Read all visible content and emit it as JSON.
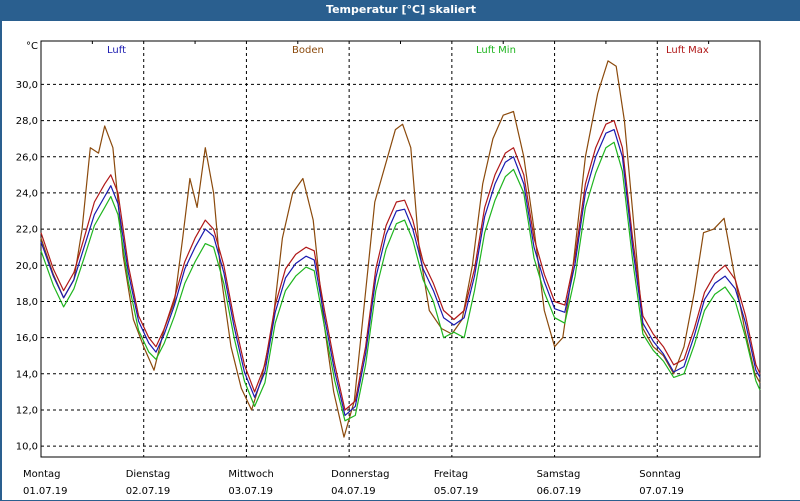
{
  "window": {
    "title": "Temperatur [°C] skaliert"
  },
  "legend": [
    {
      "label": "Luft",
      "color": "#1a1ab0"
    },
    {
      "label": "Boden",
      "color": "#8b4a0c"
    },
    {
      "label": "Luft Min",
      "color": "#1fb51f"
    },
    {
      "label": "Luft Max",
      "color": "#b01818"
    }
  ],
  "chart_data": {
    "type": "line",
    "title": "Temperatur [°C] skaliert",
    "ylabel": "°C",
    "ylim": [
      9.4,
      32.4
    ],
    "yticks": [
      "10,0",
      "12,0",
      "14,0",
      "16,0",
      "18,0",
      "20,0",
      "22,0",
      "24,0",
      "26,0",
      "28,0",
      "30,0"
    ],
    "xlim": [
      0,
      7
    ],
    "xticks": [
      {
        "weekday": "Montag",
        "date": "01.07.19"
      },
      {
        "weekday": "Dienstag",
        "date": "02.07.19"
      },
      {
        "weekday": "Mittwoch",
        "date": "03.07.19"
      },
      {
        "weekday": "Donnerstag",
        "date": "04.07.19"
      },
      {
        "weekday": "Freitag",
        "date": "05.07.19"
      },
      {
        "weekday": "Samstag",
        "date": "06.07.19"
      },
      {
        "weekday": "Sonntag",
        "date": "07.07.19"
      }
    ],
    "grid": true,
    "legend_position": "top",
    "series": [
      {
        "name": "Boden",
        "color": "#8b4a0c",
        "points": [
          [
            0,
            21.5
          ],
          [
            0.12,
            19.5
          ],
          [
            0.22,
            18.2
          ],
          [
            0.32,
            19.2
          ],
          [
            0.4,
            22.0
          ],
          [
            0.48,
            26.5
          ],
          [
            0.56,
            26.2
          ],
          [
            0.62,
            27.7
          ],
          [
            0.7,
            26.5
          ],
          [
            0.8,
            20.5
          ],
          [
            0.9,
            17.0
          ],
          [
            1.0,
            15.5
          ],
          [
            1.1,
            14.2
          ],
          [
            1.2,
            16.5
          ],
          [
            1.3,
            18.0
          ],
          [
            1.38,
            21.5
          ],
          [
            1.45,
            24.8
          ],
          [
            1.52,
            23.2
          ],
          [
            1.6,
            26.5
          ],
          [
            1.68,
            24.0
          ],
          [
            1.75,
            19.5
          ],
          [
            1.85,
            15.5
          ],
          [
            1.95,
            13.2
          ],
          [
            2.05,
            12.0
          ],
          [
            2.15,
            13.8
          ],
          [
            2.25,
            16.5
          ],
          [
            2.35,
            21.5
          ],
          [
            2.45,
            24.0
          ],
          [
            2.55,
            24.8
          ],
          [
            2.65,
            22.5
          ],
          [
            2.75,
            17.0
          ],
          [
            2.85,
            13.0
          ],
          [
            2.95,
            10.5
          ],
          [
            3.05,
            12.5
          ],
          [
            3.15,
            18.0
          ],
          [
            3.25,
            23.5
          ],
          [
            3.35,
            25.5
          ],
          [
            3.45,
            27.5
          ],
          [
            3.52,
            27.8
          ],
          [
            3.6,
            26.5
          ],
          [
            3.68,
            21.0
          ],
          [
            3.78,
            17.5
          ],
          [
            3.9,
            16.5
          ],
          [
            4.0,
            16.2
          ],
          [
            4.1,
            17.0
          ],
          [
            4.2,
            20.0
          ],
          [
            4.3,
            24.5
          ],
          [
            4.4,
            27.0
          ],
          [
            4.5,
            28.3
          ],
          [
            4.6,
            28.5
          ],
          [
            4.7,
            26.0
          ],
          [
            4.8,
            22.0
          ],
          [
            4.9,
            17.5
          ],
          [
            5.0,
            15.5
          ],
          [
            5.08,
            16.0
          ],
          [
            5.18,
            20.0
          ],
          [
            5.3,
            26.0
          ],
          [
            5.42,
            29.5
          ],
          [
            5.52,
            31.3
          ],
          [
            5.6,
            31.0
          ],
          [
            5.68,
            28.0
          ],
          [
            5.76,
            23.0
          ],
          [
            5.86,
            16.5
          ],
          [
            5.96,
            15.5
          ],
          [
            6.06,
            15.0
          ],
          [
            6.16,
            14.0
          ],
          [
            6.26,
            15.5
          ],
          [
            6.36,
            18.5
          ],
          [
            6.45,
            21.8
          ],
          [
            6.55,
            22.0
          ],
          [
            6.65,
            22.6
          ],
          [
            6.75,
            19.5
          ],
          [
            6.85,
            16.5
          ],
          [
            6.95,
            14.0
          ],
          [
            7.0,
            13.5
          ]
        ]
      },
      {
        "name": "Luft Max",
        "color": "#b01818",
        "points": [
          [
            0,
            21.8
          ],
          [
            0.12,
            19.8
          ],
          [
            0.22,
            18.6
          ],
          [
            0.32,
            19.6
          ],
          [
            0.42,
            21.5
          ],
          [
            0.52,
            23.5
          ],
          [
            0.62,
            24.5
          ],
          [
            0.68,
            25.0
          ],
          [
            0.75,
            24.0
          ],
          [
            0.85,
            20.0
          ],
          [
            0.95,
            17.2
          ],
          [
            1.05,
            16.0
          ],
          [
            1.12,
            15.5
          ],
          [
            1.2,
            16.5
          ],
          [
            1.3,
            18.2
          ],
          [
            1.4,
            20.2
          ],
          [
            1.5,
            21.5
          ],
          [
            1.6,
            22.5
          ],
          [
            1.68,
            22.0
          ],
          [
            1.78,
            20.0
          ],
          [
            1.88,
            17.0
          ],
          [
            1.98,
            14.5
          ],
          [
            2.08,
            13.0
          ],
          [
            2.18,
            14.5
          ],
          [
            2.28,
            17.8
          ],
          [
            2.38,
            19.8
          ],
          [
            2.48,
            20.6
          ],
          [
            2.58,
            21.0
          ],
          [
            2.66,
            20.8
          ],
          [
            2.76,
            17.5
          ],
          [
            2.86,
            14.5
          ],
          [
            2.96,
            12.0
          ],
          [
            3.06,
            12.5
          ],
          [
            3.16,
            15.5
          ],
          [
            3.26,
            19.8
          ],
          [
            3.36,
            22.2
          ],
          [
            3.46,
            23.5
          ],
          [
            3.54,
            23.6
          ],
          [
            3.62,
            22.5
          ],
          [
            3.72,
            20.2
          ],
          [
            3.82,
            19.0
          ],
          [
            3.92,
            17.5
          ],
          [
            4.02,
            17.0
          ],
          [
            4.12,
            17.5
          ],
          [
            4.22,
            19.8
          ],
          [
            4.32,
            23.2
          ],
          [
            4.42,
            25.0
          ],
          [
            4.52,
            26.2
          ],
          [
            4.6,
            26.5
          ],
          [
            4.7,
            25.0
          ],
          [
            4.8,
            21.5
          ],
          [
            4.9,
            19.5
          ],
          [
            5.0,
            18.0
          ],
          [
            5.1,
            17.8
          ],
          [
            5.2,
            20.5
          ],
          [
            5.3,
            24.5
          ],
          [
            5.4,
            26.5
          ],
          [
            5.5,
            27.8
          ],
          [
            5.58,
            28.0
          ],
          [
            5.66,
            26.5
          ],
          [
            5.76,
            21.5
          ],
          [
            5.86,
            17.2
          ],
          [
            5.96,
            16.2
          ],
          [
            6.06,
            15.5
          ],
          [
            6.16,
            14.5
          ],
          [
            6.26,
            14.8
          ],
          [
            6.36,
            16.5
          ],
          [
            6.46,
            18.5
          ],
          [
            6.56,
            19.5
          ],
          [
            6.66,
            20.0
          ],
          [
            6.76,
            19.2
          ],
          [
            6.86,
            17.2
          ],
          [
            6.96,
            14.5
          ],
          [
            7.0,
            14.0
          ]
        ]
      },
      {
        "name": "Luft",
        "color": "#1a1ab0",
        "points": [
          [
            0,
            21.3
          ],
          [
            0.12,
            19.4
          ],
          [
            0.22,
            18.2
          ],
          [
            0.32,
            19.2
          ],
          [
            0.42,
            21.0
          ],
          [
            0.52,
            22.8
          ],
          [
            0.62,
            23.8
          ],
          [
            0.68,
            24.4
          ],
          [
            0.75,
            23.4
          ],
          [
            0.85,
            19.6
          ],
          [
            0.95,
            16.9
          ],
          [
            1.05,
            15.7
          ],
          [
            1.12,
            15.2
          ],
          [
            1.2,
            16.2
          ],
          [
            1.3,
            17.8
          ],
          [
            1.4,
            19.8
          ],
          [
            1.5,
            21.0
          ],
          [
            1.6,
            22.0
          ],
          [
            1.68,
            21.6
          ],
          [
            1.78,
            19.6
          ],
          [
            1.88,
            16.6
          ],
          [
            1.98,
            14.1
          ],
          [
            2.08,
            12.7
          ],
          [
            2.18,
            14.1
          ],
          [
            2.28,
            17.4
          ],
          [
            2.38,
            19.3
          ],
          [
            2.48,
            20.1
          ],
          [
            2.58,
            20.5
          ],
          [
            2.66,
            20.3
          ],
          [
            2.76,
            17.1
          ],
          [
            2.86,
            14.1
          ],
          [
            2.96,
            11.7
          ],
          [
            3.06,
            12.2
          ],
          [
            3.16,
            15.1
          ],
          [
            3.26,
            19.3
          ],
          [
            3.36,
            21.7
          ],
          [
            3.46,
            23.0
          ],
          [
            3.54,
            23.1
          ],
          [
            3.62,
            22.0
          ],
          [
            3.72,
            19.8
          ],
          [
            3.82,
            18.6
          ],
          [
            3.92,
            17.1
          ],
          [
            4.02,
            16.7
          ],
          [
            4.12,
            17.1
          ],
          [
            4.22,
            19.4
          ],
          [
            4.32,
            22.7
          ],
          [
            4.42,
            24.5
          ],
          [
            4.52,
            25.7
          ],
          [
            4.6,
            26.0
          ],
          [
            4.7,
            24.5
          ],
          [
            4.8,
            21.0
          ],
          [
            4.9,
            19.1
          ],
          [
            5.0,
            17.6
          ],
          [
            5.1,
            17.4
          ],
          [
            5.2,
            20.1
          ],
          [
            5.3,
            24.0
          ],
          [
            5.4,
            26.0
          ],
          [
            5.5,
            27.3
          ],
          [
            5.58,
            27.5
          ],
          [
            5.66,
            26.0
          ],
          [
            5.76,
            21.0
          ],
          [
            5.86,
            16.8
          ],
          [
            5.96,
            15.8
          ],
          [
            6.06,
            15.1
          ],
          [
            6.16,
            14.1
          ],
          [
            6.26,
            14.4
          ],
          [
            6.36,
            16.1
          ],
          [
            6.46,
            18.1
          ],
          [
            6.56,
            19.0
          ],
          [
            6.66,
            19.4
          ],
          [
            6.76,
            18.7
          ],
          [
            6.86,
            16.8
          ],
          [
            6.96,
            14.2
          ],
          [
            7.0,
            13.8
          ]
        ]
      },
      {
        "name": "Luft Min",
        "color": "#1fb51f",
        "points": [
          [
            0,
            20.8
          ],
          [
            0.12,
            18.9
          ],
          [
            0.22,
            17.7
          ],
          [
            0.32,
            18.7
          ],
          [
            0.42,
            20.4
          ],
          [
            0.52,
            22.2
          ],
          [
            0.62,
            23.2
          ],
          [
            0.68,
            23.8
          ],
          [
            0.75,
            22.8
          ],
          [
            0.85,
            19.1
          ],
          [
            0.95,
            16.4
          ],
          [
            1.05,
            15.2
          ],
          [
            1.12,
            14.8
          ],
          [
            1.2,
            15.7
          ],
          [
            1.3,
            17.2
          ],
          [
            1.4,
            19.0
          ],
          [
            1.5,
            20.2
          ],
          [
            1.6,
            21.2
          ],
          [
            1.68,
            21.0
          ],
          [
            1.78,
            19.0
          ],
          [
            1.88,
            16.0
          ],
          [
            1.98,
            13.6
          ],
          [
            2.08,
            12.2
          ],
          [
            2.18,
            13.5
          ],
          [
            2.28,
            16.8
          ],
          [
            2.38,
            18.6
          ],
          [
            2.48,
            19.4
          ],
          [
            2.58,
            19.9
          ],
          [
            2.66,
            19.7
          ],
          [
            2.76,
            16.6
          ],
          [
            2.86,
            13.6
          ],
          [
            2.96,
            11.4
          ],
          [
            3.06,
            11.7
          ],
          [
            3.16,
            14.5
          ],
          [
            3.26,
            18.6
          ],
          [
            3.36,
            20.9
          ],
          [
            3.46,
            22.3
          ],
          [
            3.54,
            22.5
          ],
          [
            3.62,
            21.4
          ],
          [
            3.72,
            19.2
          ],
          [
            3.82,
            18.0
          ],
          [
            3.92,
            16.0
          ],
          [
            4.02,
            16.3
          ],
          [
            4.12,
            16.0
          ],
          [
            4.22,
            18.6
          ],
          [
            4.32,
            21.8
          ],
          [
            4.42,
            23.6
          ],
          [
            4.52,
            24.9
          ],
          [
            4.6,
            25.3
          ],
          [
            4.7,
            24.0
          ],
          [
            4.8,
            20.4
          ],
          [
            4.9,
            18.5
          ],
          [
            5.0,
            17.1
          ],
          [
            5.1,
            16.8
          ],
          [
            5.2,
            19.4
          ],
          [
            5.3,
            23.2
          ],
          [
            5.4,
            25.1
          ],
          [
            5.5,
            26.5
          ],
          [
            5.58,
            26.8
          ],
          [
            5.66,
            25.2
          ],
          [
            5.76,
            20.3
          ],
          [
            5.86,
            16.2
          ],
          [
            5.96,
            15.3
          ],
          [
            6.06,
            14.7
          ],
          [
            6.16,
            13.8
          ],
          [
            6.26,
            14.0
          ],
          [
            6.36,
            15.6
          ],
          [
            6.46,
            17.5
          ],
          [
            6.56,
            18.4
          ],
          [
            6.66,
            18.8
          ],
          [
            6.76,
            18.0
          ],
          [
            6.86,
            16.0
          ],
          [
            6.96,
            13.6
          ],
          [
            7.0,
            13.1
          ]
        ]
      }
    ]
  }
}
